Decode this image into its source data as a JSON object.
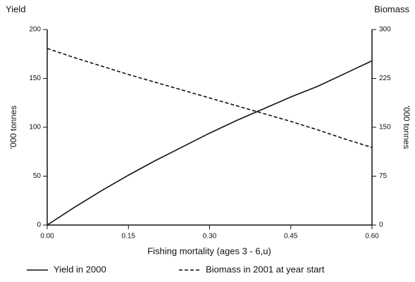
{
  "chart_data": {
    "type": "line",
    "y_title": "Yield",
    "y2_title": "Biomass",
    "ylabel": "'000 tonnes",
    "y2label": "'000 tonnes",
    "xlabel": "Fishing mortality (ages 3 - 6,u)",
    "x": [
      0,
      0.05,
      0.1,
      0.15,
      0.2,
      0.25,
      0.3,
      0.35,
      0.4,
      0.45,
      0.5,
      0.55,
      0.6
    ],
    "series": [
      {
        "name": "Yield in 2000",
        "color": "#111111",
        "style": "solid",
        "axis": "y",
        "values": [
          0,
          18,
          35,
          51,
          66,
          80,
          94,
          107,
          119,
          131,
          142,
          155,
          168
        ]
      },
      {
        "name": "Biomass in 2001 at year start",
        "color": "#111111",
        "style": "dashed",
        "axis": "y2",
        "values": [
          271,
          257,
          244,
          231,
          219,
          207,
          195,
          183,
          171,
          159,
          146,
          132,
          119
        ]
      }
    ],
    "xlim": [
      0,
      0.6
    ],
    "xticks": [
      {
        "value": 0,
        "label": "0.00"
      },
      {
        "value": 0.15,
        "label": "0.15"
      },
      {
        "value": 0.3,
        "label": "0.30"
      },
      {
        "value": 0.45,
        "label": "0.45"
      },
      {
        "value": 0.6,
        "label": "0.60"
      }
    ],
    "ylim": [
      0,
      200
    ],
    "yticks": [
      0,
      50,
      100,
      150,
      200
    ],
    "y2lim": [
      0,
      300
    ],
    "y2ticks": [
      0,
      75,
      150,
      225,
      300
    ],
    "grid": false
  }
}
